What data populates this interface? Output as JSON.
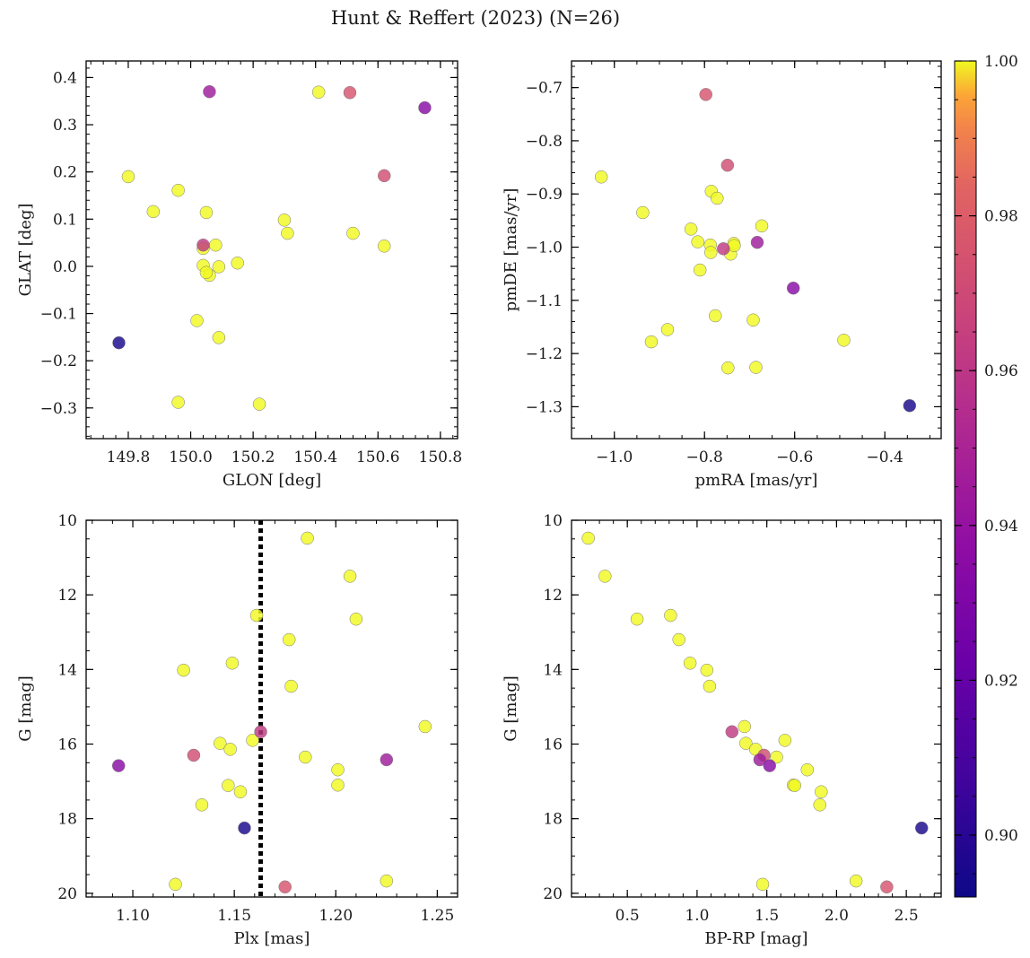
{
  "chart_data": {
    "title": "Hunt & Reffert (2023) (N=26)",
    "colorbar": {
      "colormap": "plasma",
      "range": [
        0.892,
        1.0
      ],
      "ticks": [
        0.9,
        0.92,
        0.94,
        0.96,
        0.98,
        1.0
      ],
      "tick_labels": [
        "0.90",
        "0.92",
        "0.94",
        "0.96",
        "0.98",
        "1.00"
      ]
    },
    "points": [
      {
        "glon": 149.77,
        "glat": -0.162,
        "pmra": -0.345,
        "pmde": -1.298,
        "plx": 1.155,
        "g": 18.25,
        "bprp": 2.61,
        "prob": 0.895
      },
      {
        "glon": 150.75,
        "glat": 0.336,
        "pmra": -0.603,
        "pmde": -1.077,
        "plx": 1.093,
        "g": 16.58,
        "bprp": 1.52,
        "prob": 0.935
      },
      {
        "glon": 150.06,
        "glat": 0.37,
        "pmra": -0.683,
        "pmde": -0.991,
        "plx": 1.225,
        "g": 16.42,
        "bprp": 1.45,
        "prob": 0.945
      },
      {
        "glon": 150.04,
        "glat": 0.045,
        "pmra": -0.758,
        "pmde": -1.003,
        "plx": 1.163,
        "g": 15.67,
        "bprp": 1.25,
        "prob": 0.962
      },
      {
        "glon": 150.62,
        "glat": 0.192,
        "pmra": -0.749,
        "pmde": -0.846,
        "plx": 1.13,
        "g": 16.3,
        "bprp": 1.48,
        "prob": 0.972
      },
      {
        "glon": 150.51,
        "glat": 0.368,
        "pmra": -0.797,
        "pmde": -0.713,
        "plx": 1.175,
        "g": 19.83,
        "bprp": 2.36,
        "prob": 0.975
      },
      {
        "glon": 149.8,
        "glat": 0.19,
        "pmra": -1.029,
        "pmde": -0.868,
        "plx": 1.186,
        "g": 10.48,
        "bprp": 0.22,
        "prob": 1.0
      },
      {
        "glon": 149.88,
        "glat": 0.116,
        "pmra": -0.937,
        "pmde": -0.935,
        "plx": 1.207,
        "g": 11.5,
        "bprp": 0.34,
        "prob": 1.0
      },
      {
        "glon": 149.96,
        "glat": 0.161,
        "pmra": -0.882,
        "pmde": -1.155,
        "plx": 1.21,
        "g": 12.65,
        "bprp": 0.57,
        "prob": 1.0
      },
      {
        "glon": 150.05,
        "glat": 0.114,
        "pmra": -0.83,
        "pmde": -0.966,
        "plx": 1.161,
        "g": 12.55,
        "bprp": 0.81,
        "prob": 1.0
      },
      {
        "glon": 150.04,
        "glat": 0.038,
        "pmra": -0.815,
        "pmde": -0.99,
        "plx": 1.177,
        "g": 13.2,
        "bprp": 0.87,
        "prob": 1.0
      },
      {
        "glon": 150.04,
        "glat": 0.002,
        "pmra": -0.787,
        "pmde": -0.996,
        "plx": 1.149,
        "g": 13.83,
        "bprp": 0.95,
        "prob": 1.0
      },
      {
        "glon": 150.08,
        "glat": 0.045,
        "pmra": -0.785,
        "pmde": -0.895,
        "plx": 1.125,
        "g": 14.02,
        "bprp": 1.07,
        "prob": 1.0
      },
      {
        "glon": 150.09,
        "glat": -0.001,
        "pmra": -0.772,
        "pmde": -0.908,
        "plx": 1.178,
        "g": 14.45,
        "bprp": 1.09,
        "prob": 1.0
      },
      {
        "glon": 150.06,
        "glat": -0.019,
        "pmra": -0.786,
        "pmde": -1.01,
        "plx": 1.244,
        "g": 15.53,
        "bprp": 1.34,
        "prob": 1.0
      },
      {
        "glon": 150.05,
        "glat": -0.013,
        "pmra": -0.742,
        "pmde": -1.013,
        "plx": 1.143,
        "g": 15.98,
        "bprp": 1.35,
        "prob": 1.0
      },
      {
        "glon": 150.15,
        "glat": 0.007,
        "pmra": -0.735,
        "pmde": -0.993,
        "plx": 1.148,
        "g": 16.14,
        "bprp": 1.42,
        "prob": 1.0
      },
      {
        "glon": 150.3,
        "glat": 0.098,
        "pmra": -0.734,
        "pmde": -0.997,
        "plx": 1.159,
        "g": 15.9,
        "bprp": 1.63,
        "prob": 1.0
      },
      {
        "glon": 150.31,
        "glat": 0.07,
        "pmra": -0.673,
        "pmde": -0.96,
        "plx": 1.185,
        "g": 16.35,
        "bprp": 1.57,
        "prob": 1.0
      },
      {
        "glon": 150.52,
        "glat": 0.07,
        "pmra": -0.81,
        "pmde": -1.043,
        "plx": 1.201,
        "g": 16.69,
        "bprp": 1.79,
        "prob": 1.0
      },
      {
        "glon": 150.62,
        "glat": 0.043,
        "pmra": -0.776,
        "pmde": -1.129,
        "plx": 1.201,
        "g": 17.1,
        "bprp": 1.69,
        "prob": 1.0
      },
      {
        "glon": 150.41,
        "glat": 0.369,
        "pmra": -0.692,
        "pmde": -1.137,
        "plx": 1.147,
        "g": 17.11,
        "bprp": 1.7,
        "prob": 1.0
      },
      {
        "glon": 150.02,
        "glat": -0.115,
        "pmra": -0.918,
        "pmde": -1.178,
        "plx": 1.153,
        "g": 17.28,
        "bprp": 1.89,
        "prob": 1.0
      },
      {
        "glon": 150.09,
        "glat": -0.151,
        "pmra": -0.491,
        "pmde": -1.175,
        "plx": 1.134,
        "g": 17.63,
        "bprp": 1.88,
        "prob": 1.0
      },
      {
        "glon": 149.96,
        "glat": -0.288,
        "pmra": -0.748,
        "pmde": -1.227,
        "plx": 1.121,
        "g": 19.76,
        "bprp": 1.47,
        "prob": 1.0
      },
      {
        "glon": 150.22,
        "glat": -0.292,
        "pmra": -0.686,
        "pmde": -1.226,
        "plx": 1.225,
        "g": 19.67,
        "bprp": 2.14,
        "prob": 1.0
      }
    ],
    "panels": [
      {
        "id": "glon-glat",
        "type": "scatter",
        "x_field": "glon",
        "y_field": "glat",
        "xlabel": "GLON [deg]",
        "ylabel": "GLAT [deg]",
        "xlim": [
          149.665,
          150.855
        ],
        "ylim": [
          -0.365,
          0.435
        ],
        "x_ticks": [
          149.8,
          150.0,
          150.2,
          150.4,
          150.6,
          150.8
        ],
        "x_tick_labels": [
          "149.8",
          "150.0",
          "150.2",
          "150.4",
          "150.6",
          "150.8"
        ],
        "x_minor": 0.04,
        "y_ticks": [
          -0.3,
          -0.2,
          -0.1,
          0.0,
          0.1,
          0.2,
          0.3,
          0.4
        ],
        "y_tick_labels": [
          "−0.3",
          "−0.2",
          "−0.1",
          "0.0",
          "0.1",
          "0.2",
          "0.3",
          "0.4"
        ],
        "y_minor": 0.02,
        "y_inverted": false
      },
      {
        "id": "pm",
        "type": "scatter",
        "x_field": "pmra",
        "y_field": "pmde",
        "xlabel": "pmRA [mas/yr]",
        "ylabel": "pmDE [mas/yr]",
        "xlim": [
          -1.095,
          -0.275
        ],
        "ylim": [
          -1.36,
          -0.65
        ],
        "x_ticks": [
          -1.0,
          -0.8,
          -0.6,
          -0.4
        ],
        "x_tick_labels": [
          "−1.0",
          "−0.8",
          "−0.6",
          "−0.4"
        ],
        "x_minor": 0.05,
        "y_ticks": [
          -1.3,
          -1.2,
          -1.1,
          -1.0,
          -0.9,
          -0.8,
          -0.7
        ],
        "y_tick_labels": [
          "−1.3",
          "−1.2",
          "−1.1",
          "−1.0",
          "−0.9",
          "−0.8",
          "−0.7"
        ],
        "y_minor": 0.02,
        "y_inverted": false
      },
      {
        "id": "plx-g",
        "type": "scatter",
        "x_field": "plx",
        "y_field": "g",
        "xlabel": "Plx [mas]",
        "ylabel": "G [mag]",
        "xlim": [
          1.077,
          1.26
        ],
        "ylim": [
          10.0,
          20.1
        ],
        "x_ticks": [
          1.1,
          1.15,
          1.2,
          1.25
        ],
        "x_tick_labels": [
          "1.10",
          "1.15",
          "1.20",
          "1.25"
        ],
        "x_minor": 0.01,
        "y_ticks": [
          10,
          12,
          14,
          16,
          18,
          20
        ],
        "y_tick_labels": [
          "10",
          "12",
          "14",
          "16",
          "18",
          "20"
        ],
        "y_minor": 0.5,
        "y_inverted": true,
        "vline": {
          "x": 1.163,
          "style": "dotted",
          "color": "#000000"
        }
      },
      {
        "id": "cmd",
        "type": "scatter",
        "x_field": "bprp",
        "y_field": "g",
        "xlabel": "BP-RP [mag]",
        "ylabel": "G [mag]",
        "xlim": [
          0.1,
          2.75
        ],
        "ylim": [
          10.0,
          20.1
        ],
        "x_ticks": [
          0.5,
          1.0,
          1.5,
          2.0,
          2.5
        ],
        "x_tick_labels": [
          "0.5",
          "1.0",
          "1.5",
          "2.0",
          "2.5"
        ],
        "x_minor": 0.1,
        "y_ticks": [
          10,
          12,
          14,
          16,
          18,
          20
        ],
        "y_tick_labels": [
          "10",
          "12",
          "14",
          "16",
          "18",
          "20"
        ],
        "y_minor": 0.5,
        "y_inverted": true
      }
    ]
  }
}
